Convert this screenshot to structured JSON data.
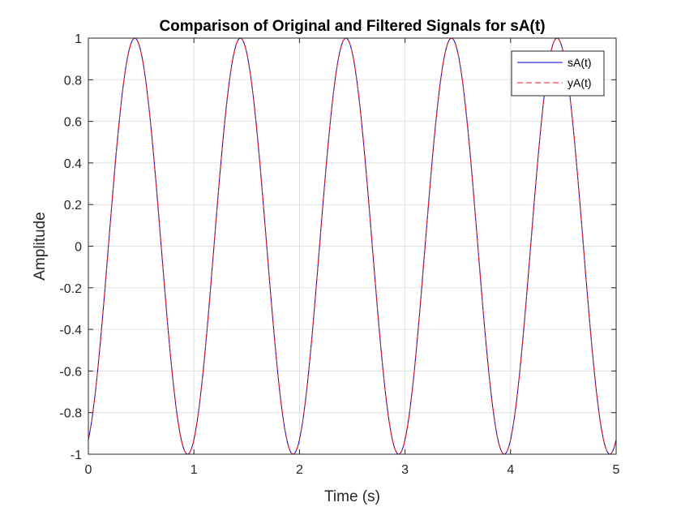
{
  "chart_data": {
    "type": "line",
    "title": "Comparison of Original and Filtered Signals for sA(t)",
    "xlabel": "Time (s)",
    "ylabel": "Amplitude",
    "xlim": [
      0,
      5
    ],
    "ylim": [
      -1,
      1
    ],
    "xticks": [
      0,
      1,
      2,
      3,
      4,
      5
    ],
    "xtick_labels": [
      "0",
      "1",
      "2",
      "3",
      "4",
      "5"
    ],
    "yticks": [
      -1,
      -0.8,
      -0.6,
      -0.4,
      -0.2,
      0,
      0.2,
      0.4,
      0.6,
      0.8,
      1
    ],
    "ytick_labels": [
      "-1",
      "-0.8",
      "-0.6",
      "-0.4",
      "-0.2",
      "0",
      "0.2",
      "0.4",
      "0.6",
      "0.8",
      "1"
    ],
    "grid": true,
    "legend_position": "top-right",
    "signal": {
      "frequency_hz": 1,
      "peak_time_s": 0.44,
      "amplitude": 1,
      "sample_step_s": 0.01
    },
    "series": [
      {
        "name": "sA(t)",
        "color": "#0000cc",
        "line_style": "solid"
      },
      {
        "name": "yA(t)",
        "color": "#e8191f",
        "line_style": "dashed"
      }
    ]
  }
}
